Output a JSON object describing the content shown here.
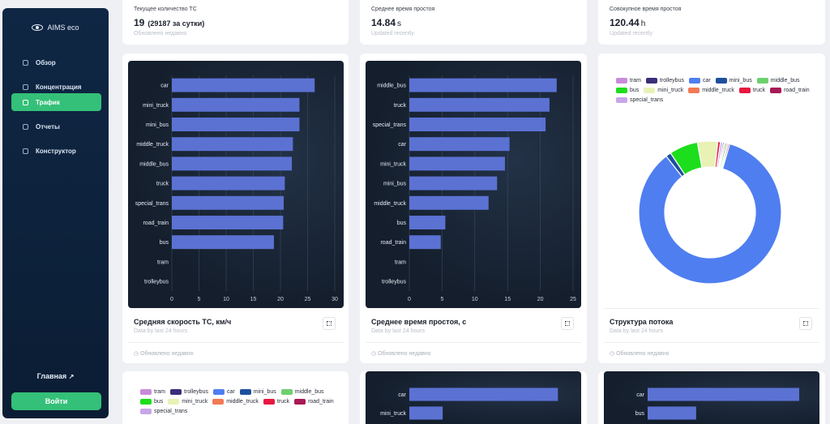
{
  "sidebar": {
    "brand": "AIMS eco",
    "items": [
      {
        "label": "Обзор",
        "icon": "overview-icon"
      },
      {
        "label": "Концентрация",
        "icon": "concentration-icon"
      },
      {
        "label": "Трафик",
        "icon": "traffic-icon",
        "active": true
      },
      {
        "label": "Отчеты",
        "icon": "reports-icon"
      },
      {
        "label": "Конструктор",
        "icon": "constructor-icon"
      }
    ],
    "home_label": "Главная",
    "login_label": "Войти"
  },
  "stats": [
    {
      "label": "Текущее количество ТС",
      "value": "19",
      "extra": "(29187 за сутки)",
      "unit": "",
      "sub": "Обновлено недавно"
    },
    {
      "label": "Среднее время простоя",
      "value": "14.84",
      "extra": "",
      "unit": "s",
      "sub": "Updated recently"
    },
    {
      "label": "Совокупное время простоя",
      "value": "120.44",
      "extra": "",
      "unit": "h",
      "sub": "Updated recently"
    }
  ],
  "cards": [
    {
      "title": "Средняя скорость ТС, км/ч",
      "sub": "Data by last 24 hours",
      "foot": "Обновлено недавно"
    },
    {
      "title": "Среднее время простоя, с",
      "sub": "Data by last 24 hours",
      "foot": "Обновлено недавно"
    },
    {
      "title": "Структура потока",
      "sub": "Data by last 24 hours",
      "foot": "Обновлено недавно"
    }
  ],
  "colors": {
    "accent": "#34c078",
    "bar": "#5b72d3",
    "sidebar": "#0f2744"
  },
  "legend": [
    {
      "name": "tram",
      "color": "#c98bdb"
    },
    {
      "name": "trolleybus",
      "color": "#3b2d7a"
    },
    {
      "name": "car",
      "color": "#4f7ef0"
    },
    {
      "name": "mini_bus",
      "color": "#1f4f9c"
    },
    {
      "name": "middle_bus",
      "color": "#6dd06d"
    },
    {
      "name": "bus",
      "color": "#1dde1d"
    },
    {
      "name": "mini_truck",
      "color": "#e8f2b5"
    },
    {
      "name": "middle_truck",
      "color": "#f27a55"
    },
    {
      "name": "truck",
      "color": "#e8183f"
    },
    {
      "name": "road_train",
      "color": "#a81a55"
    },
    {
      "name": "special_trans",
      "color": "#c9a6e8"
    }
  ],
  "chart_data": [
    {
      "type": "bar",
      "orientation": "horizontal",
      "categories": [
        "car",
        "mini_truck",
        "mini_bus",
        "middle_truck",
        "middle_bus",
        "truck",
        "special_trans",
        "road_train",
        "bus",
        "tram",
        "trolleybus"
      ],
      "values": [
        26.3,
        23.5,
        23.5,
        22.3,
        22.1,
        20.8,
        20.6,
        20.5,
        18.8,
        0,
        0
      ],
      "xlim": [
        0,
        30
      ],
      "xticks": [
        0,
        5,
        10,
        15,
        20,
        25,
        30
      ],
      "title": "Средняя скорость ТС, км/ч",
      "grid": true
    },
    {
      "type": "bar",
      "orientation": "horizontal",
      "categories": [
        "middle_bus",
        "truck",
        "special_trans",
        "car",
        "mini_truck",
        "mini_bus",
        "middle_truck",
        "bus",
        "road_train",
        "tram",
        "trolleybus"
      ],
      "values": [
        22.5,
        21.4,
        20.8,
        15.3,
        14.6,
        13.4,
        12.1,
        5.5,
        4.8,
        0,
        0
      ],
      "xlim": [
        0,
        25
      ],
      "xticks": [
        0,
        5,
        10,
        15,
        20,
        25
      ],
      "title": "Среднее время простоя, с",
      "grid": true
    },
    {
      "type": "pie",
      "donut": true,
      "labels": [
        "car",
        "mini_bus",
        "bus",
        "mini_truck",
        "truck",
        "special_trans",
        "trolleybus",
        "tram",
        "middle_bus",
        "middle_truck",
        "road_train"
      ],
      "values": [
        85.0,
        1.2,
        6.5,
        4.6,
        0.6,
        0.5,
        0.3,
        0.3,
        0.4,
        0.3,
        0.3
      ],
      "title": "Структура потока",
      "legend": "top"
    },
    {
      "type": "bar",
      "orientation": "horizontal",
      "categories": [
        "car",
        "mini_truck"
      ],
      "values": [
        24.5,
        5.5
      ],
      "partial": true
    },
    {
      "type": "bar",
      "orientation": "horizontal",
      "categories": [
        "car",
        "bus"
      ],
      "values": [
        25.0,
        8.0
      ],
      "partial": true
    }
  ]
}
